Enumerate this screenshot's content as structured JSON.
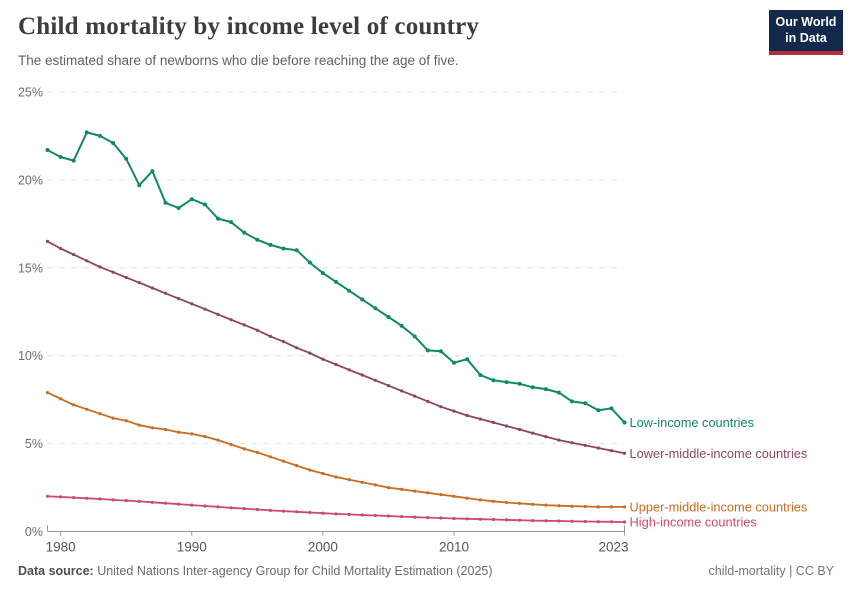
{
  "header": {
    "title": "Child mortality by income level of country",
    "subtitle": "The estimated share of newborns who die before reaching the age of five."
  },
  "logo": {
    "line1": "Our World",
    "line2": "in Data",
    "bg_color": "#12294b",
    "accent_color": "#b82b3b"
  },
  "footer": {
    "datasource_label": "Data source:",
    "datasource_text": " United Nations Inter-agency Group for Child Mortality Estimation (2025)",
    "right_text": "child-mortality | CC BY"
  },
  "chart_data": {
    "type": "line",
    "title": "Child mortality by income level of country",
    "xlabel": "",
    "ylabel": "",
    "xlim": [
      1979,
      2023
    ],
    "ylim": [
      0,
      25
    ],
    "grid": "horizontal-dashed",
    "legend_position": "right-of-line-ends",
    "years": [
      1979,
      1980,
      1981,
      1982,
      1983,
      1984,
      1985,
      1986,
      1987,
      1988,
      1989,
      1990,
      1991,
      1992,
      1993,
      1994,
      1995,
      1996,
      1997,
      1998,
      1999,
      2000,
      2001,
      2002,
      2003,
      2004,
      2005,
      2006,
      2007,
      2008,
      2009,
      2010,
      2011,
      2012,
      2013,
      2014,
      2015,
      2016,
      2017,
      2018,
      2019,
      2020,
      2021,
      2022,
      2023
    ],
    "xticks": [
      {
        "v": 1980,
        "label": "1980"
      },
      {
        "v": 1990,
        "label": "1990"
      },
      {
        "v": 2000,
        "label": "2000"
      },
      {
        "v": 2010,
        "label": "2010"
      },
      {
        "v": 2023,
        "label": "2023"
      }
    ],
    "yticks": [
      {
        "v": 0,
        "label": "0%"
      },
      {
        "v": 5,
        "label": "5%"
      },
      {
        "v": 10,
        "label": "10%"
      },
      {
        "v": 15,
        "label": "15%"
      },
      {
        "v": 20,
        "label": "20%"
      },
      {
        "v": 25,
        "label": "25%"
      }
    ],
    "series": [
      {
        "name": "Low-income countries",
        "color": "#128a60",
        "values": [
          21.7,
          21.3,
          21.1,
          22.7,
          22.5,
          22.1,
          21.2,
          19.7,
          20.5,
          18.7,
          18.4,
          18.9,
          18.6,
          17.8,
          17.6,
          17.0,
          16.6,
          16.3,
          16.1,
          16.0,
          15.3,
          14.7,
          14.2,
          13.7,
          13.2,
          12.7,
          12.2,
          11.7,
          11.1,
          10.3,
          10.25,
          9.6,
          9.8,
          8.9,
          8.6,
          8.5,
          8.4,
          8.2,
          8.1,
          7.9,
          7.4,
          7.3,
          6.9,
          7.0,
          6.2
        ]
      },
      {
        "name": "Lower-middle-income countries",
        "color": "#8c4569",
        "values": [
          16.5,
          16.1,
          15.75,
          15.4,
          15.05,
          14.75,
          14.45,
          14.15,
          13.85,
          13.55,
          13.25,
          12.95,
          12.65,
          12.35,
          12.05,
          11.75,
          11.45,
          11.1,
          10.8,
          10.45,
          10.15,
          9.8,
          9.5,
          9.2,
          8.9,
          8.6,
          8.3,
          8.0,
          7.7,
          7.4,
          7.1,
          6.85,
          6.6,
          6.4,
          6.2,
          6.0,
          5.8,
          5.6,
          5.4,
          5.2,
          5.05,
          4.9,
          4.75,
          4.6,
          4.45
        ]
      },
      {
        "name": "Upper-middle-income countries",
        "color": "#c96d20",
        "values": [
          7.9,
          7.55,
          7.2,
          6.95,
          6.7,
          6.45,
          6.3,
          6.05,
          5.9,
          5.8,
          5.65,
          5.55,
          5.4,
          5.2,
          4.95,
          4.7,
          4.5,
          4.25,
          4.0,
          3.75,
          3.5,
          3.3,
          3.1,
          2.95,
          2.8,
          2.65,
          2.5,
          2.4,
          2.3,
          2.2,
          2.1,
          2.0,
          1.9,
          1.8,
          1.72,
          1.65,
          1.6,
          1.55,
          1.5,
          1.47,
          1.44,
          1.42,
          1.4,
          1.4,
          1.4
        ]
      },
      {
        "name": "High-income countries",
        "color": "#ce4a6a",
        "values": [
          2.0,
          1.97,
          1.93,
          1.89,
          1.85,
          1.8,
          1.76,
          1.71,
          1.66,
          1.61,
          1.56,
          1.5,
          1.45,
          1.4,
          1.35,
          1.3,
          1.25,
          1.2,
          1.16,
          1.12,
          1.08,
          1.04,
          1.0,
          0.97,
          0.94,
          0.91,
          0.88,
          0.85,
          0.82,
          0.79,
          0.77,
          0.74,
          0.72,
          0.7,
          0.68,
          0.66,
          0.64,
          0.62,
          0.61,
          0.6,
          0.58,
          0.57,
          0.56,
          0.55,
          0.54
        ]
      }
    ]
  }
}
